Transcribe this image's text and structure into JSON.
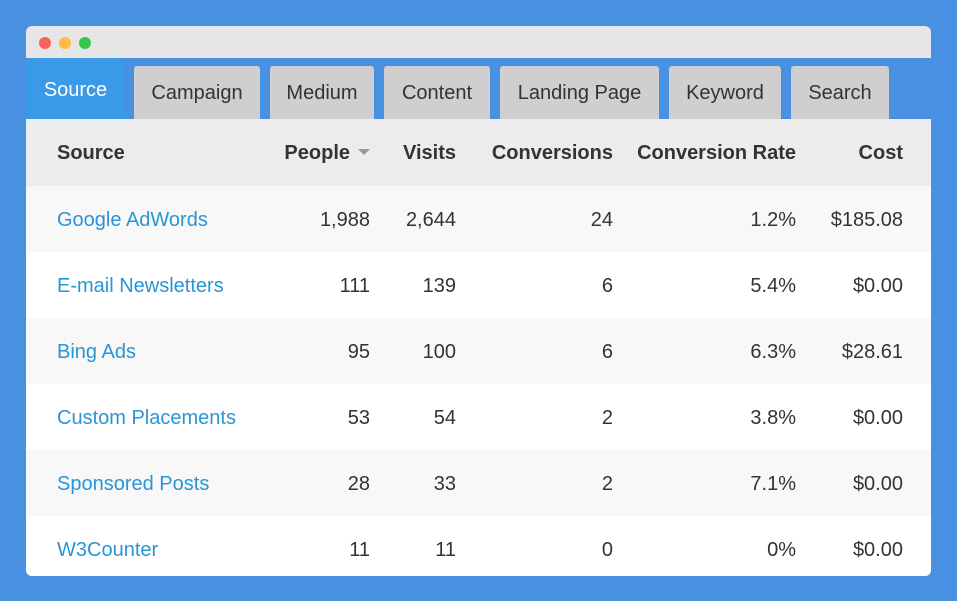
{
  "tabs": [
    {
      "label": "Source",
      "active": true
    },
    {
      "label": "Campaign",
      "active": false
    },
    {
      "label": "Medium",
      "active": false
    },
    {
      "label": "Content",
      "active": false
    },
    {
      "label": "Landing Page",
      "active": false
    },
    {
      "label": "Keyword",
      "active": false
    },
    {
      "label": "Search",
      "active": false
    }
  ],
  "table": {
    "headers": {
      "source": "Source",
      "people": "People",
      "visits": "Visits",
      "conversions": "Conversions",
      "conversion_rate": "Conversion Rate",
      "cost": "Cost"
    },
    "sorted_column": "people",
    "sort_direction": "descending",
    "rows": [
      {
        "source": "Google AdWords",
        "people": "1,988",
        "visits": "2,644",
        "conversions": "24",
        "conversion_rate": "1.2%",
        "cost": "$185.08"
      },
      {
        "source": "E-mail Newsletters",
        "people": "111",
        "visits": "139",
        "conversions": "6",
        "conversion_rate": "5.4%",
        "cost": "$0.00"
      },
      {
        "source": "Bing Ads",
        "people": "95",
        "visits": "100",
        "conversions": "6",
        "conversion_rate": "6.3%",
        "cost": "$28.61"
      },
      {
        "source": "Custom Placements",
        "people": "53",
        "visits": "54",
        "conversions": "2",
        "conversion_rate": "3.8%",
        "cost": "$0.00"
      },
      {
        "source": "Sponsored Posts",
        "people": "28",
        "visits": "33",
        "conversions": "2",
        "conversion_rate": "7.1%",
        "cost": "$0.00"
      },
      {
        "source": "W3Counter",
        "people": "11",
        "visits": "11",
        "conversions": "0",
        "conversion_rate": "0%",
        "cost": "$0.00"
      }
    ]
  },
  "colors": {
    "background": "#4a90e2",
    "active_tab": "#3a9ae8",
    "inactive_tab": "#cfcfcf",
    "link": "#2a95d6",
    "header_row": "#ececec"
  }
}
